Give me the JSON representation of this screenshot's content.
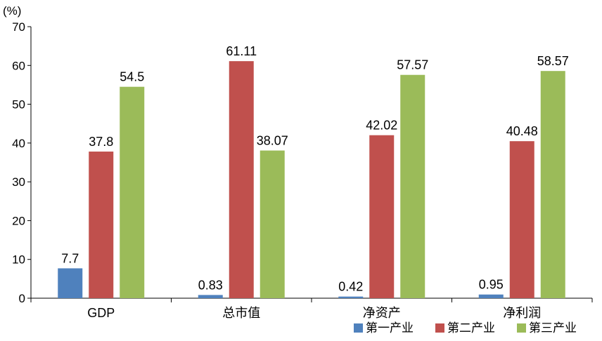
{
  "chart_data": {
    "type": "bar",
    "y_unit_label": "(%)",
    "categories": [
      "GDP",
      "总市值",
      "净资产",
      "净利润"
    ],
    "series": [
      {
        "name": "第一产业",
        "color": "#4F81BD",
        "values": [
          7.7,
          0.83,
          0.42,
          0.95
        ]
      },
      {
        "name": "第二产业",
        "color": "#C0504D",
        "values": [
          37.8,
          61.11,
          42.02,
          40.48
        ]
      },
      {
        "name": "第三产业",
        "color": "#9BBB59",
        "values": [
          54.5,
          38.07,
          57.57,
          58.57
        ]
      }
    ],
    "ylim": [
      0,
      70
    ],
    "yticks": [
      0,
      10,
      20,
      30,
      40,
      50,
      60,
      70
    ],
    "legend_position": "bottom-right",
    "grid": false
  }
}
